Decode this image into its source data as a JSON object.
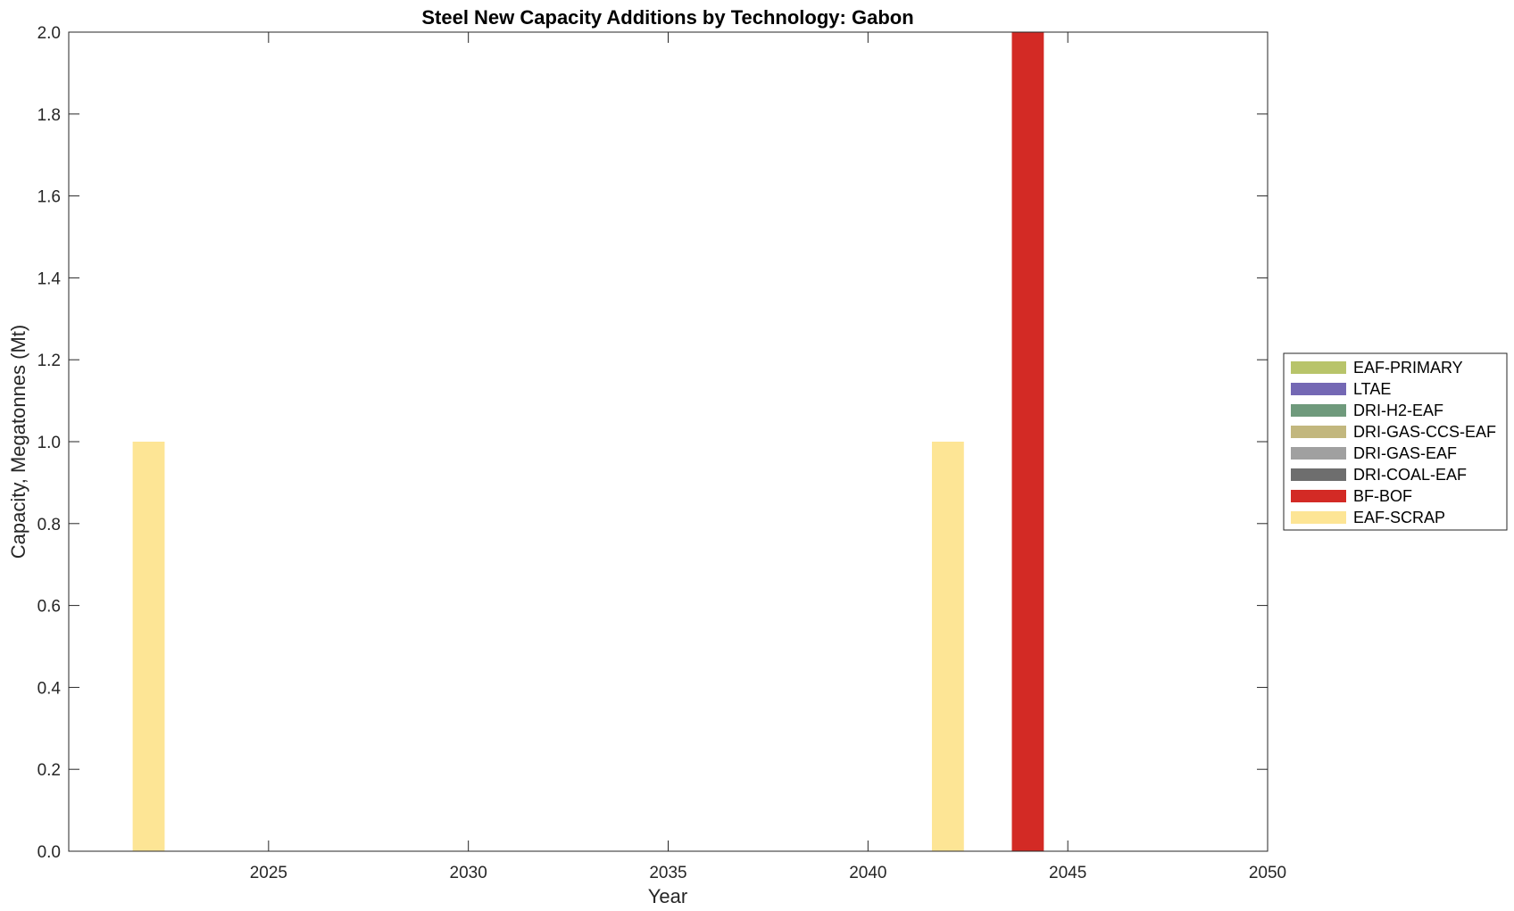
{
  "chart_data": {
    "type": "bar",
    "stacked": true,
    "title": "Steel New Capacity Additions by Technology: Gabon",
    "xlabel": "Year",
    "ylabel": "Capacity, Megatonnes (Mt)",
    "xlim": [
      2020,
      2050
    ],
    "ylim": [
      0,
      2
    ],
    "x_ticks": [
      2025,
      2030,
      2035,
      2040,
      2045,
      2050
    ],
    "y_ticks": [
      "0.0",
      "0.2",
      "0.4",
      "0.6",
      "0.8",
      "1.0",
      "1.2",
      "1.4",
      "1.6",
      "1.8",
      "2.0"
    ],
    "grid": false,
    "legend_position": "outside-right",
    "x": [
      2022,
      2042,
      2044
    ],
    "series": [
      {
        "name": "EAF-PRIMARY",
        "color": "#b8c46a",
        "values": [
          0,
          0,
          0
        ]
      },
      {
        "name": "LTAE",
        "color": "#7468b4",
        "values": [
          0,
          0,
          0
        ]
      },
      {
        "name": "DRI-H2-EAF",
        "color": "#6f9a7c",
        "values": [
          0,
          0,
          0
        ]
      },
      {
        "name": "DRI-GAS-CCS-EAF",
        "color": "#c2b77e",
        "values": [
          0,
          0,
          0
        ]
      },
      {
        "name": "DRI-GAS-EAF",
        "color": "#a0a0a0",
        "values": [
          0,
          0,
          0
        ]
      },
      {
        "name": "DRI-COAL-EAF",
        "color": "#6e6e6e",
        "values": [
          0,
          0,
          0
        ]
      },
      {
        "name": "BF-BOF",
        "color": "#d32a25",
        "values": [
          0,
          0,
          2
        ]
      },
      {
        "name": "EAF-SCRAP",
        "color": "#fde595",
        "values": [
          1,
          1,
          0
        ]
      }
    ]
  }
}
